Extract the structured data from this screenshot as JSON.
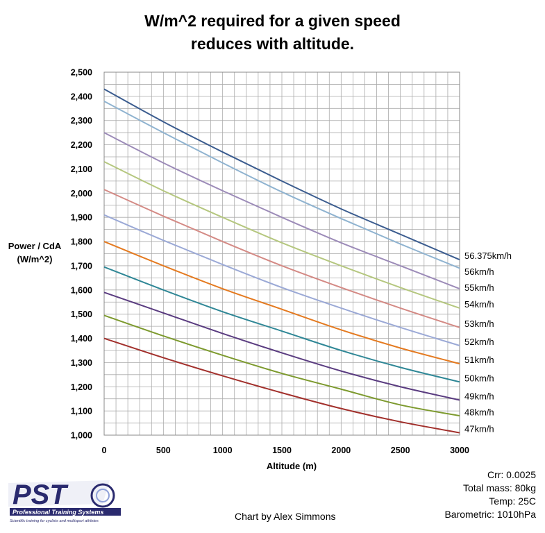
{
  "chart_data": {
    "type": "line",
    "title_lines": [
      "W/m^2 required for a given speed",
      "reduces with altitude."
    ],
    "ylabel_lines": [
      "Power / CdA",
      "(W/m^2)"
    ],
    "xlabel": "Altitude (m)",
    "xlim": [
      0,
      3000
    ],
    "ylim": [
      1000,
      2500
    ],
    "x_ticks": [
      0,
      500,
      1000,
      1500,
      2000,
      2500,
      3000
    ],
    "x_tick_labels": [
      "0",
      "500",
      "1000",
      "1500",
      "2000",
      "2500",
      "3000"
    ],
    "y_ticks": [
      1000,
      1100,
      1200,
      1300,
      1400,
      1500,
      1600,
      1700,
      1800,
      1900,
      2000,
      2100,
      2200,
      2300,
      2400,
      2500
    ],
    "y_tick_labels": [
      "1,000",
      "1,100",
      "1,200",
      "1,300",
      "1,400",
      "1,500",
      "1,600",
      "1,700",
      "1,800",
      "1,900",
      "2,000",
      "2,100",
      "2,200",
      "2,300",
      "2,400",
      "2,500"
    ],
    "grid": true,
    "legend": "labels at right end of each line",
    "x": [
      0,
      500,
      1000,
      1500,
      2000,
      2500,
      3000
    ],
    "series": [
      {
        "name": "56.375km/h",
        "color": "#3B5C8F",
        "values": [
          2430,
          2295,
          2170,
          2050,
          1935,
          1830,
          1725
        ]
      },
      {
        "name": "56km/h",
        "color": "#8FB3D0",
        "values": [
          2380,
          2250,
          2125,
          2005,
          1895,
          1790,
          1690
        ]
      },
      {
        "name": "55km/h",
        "color": "#9C8BB8",
        "values": [
          2250,
          2125,
          2010,
          1900,
          1795,
          1700,
          1605
        ]
      },
      {
        "name": "54km/h",
        "color": "#B5C77F",
        "values": [
          2130,
          2010,
          1900,
          1795,
          1700,
          1610,
          1525
        ]
      },
      {
        "name": "53km/h",
        "color": "#D48A85",
        "values": [
          2015,
          1905,
          1800,
          1700,
          1610,
          1525,
          1445
        ]
      },
      {
        "name": "52km/h",
        "color": "#9BA9D6",
        "values": [
          1910,
          1805,
          1705,
          1610,
          1525,
          1445,
          1370
        ]
      },
      {
        "name": "51km/h",
        "color": "#E47A20",
        "values": [
          1800,
          1700,
          1605,
          1520,
          1435,
          1360,
          1295
        ]
      },
      {
        "name": "50km/h",
        "color": "#2F8796",
        "values": [
          1695,
          1600,
          1510,
          1430,
          1350,
          1280,
          1220
        ]
      },
      {
        "name": "49km/h",
        "color": "#5A3C80",
        "values": [
          1590,
          1505,
          1420,
          1340,
          1265,
          1200,
          1145
        ]
      },
      {
        "name": "48km/h",
        "color": "#7D9A2E",
        "values": [
          1495,
          1410,
          1330,
          1255,
          1190,
          1125,
          1080
        ]
      },
      {
        "name": "47km/h",
        "color": "#A2302C",
        "values": [
          1400,
          1320,
          1245,
          1175,
          1110,
          1055,
          1010
        ]
      }
    ]
  },
  "params": [
    "Crr: 0.0025",
    "Total mass: 80kg",
    "Temp: 25C",
    "Barometric:  1010hPa"
  ],
  "credit": "Chart by Alex Simmons",
  "logo": {
    "letters": "PST",
    "name": "Professional Training Systems",
    "tagline": "Scientific training for cyclists and multisport athletes",
    "color": "#2A2A6E"
  }
}
